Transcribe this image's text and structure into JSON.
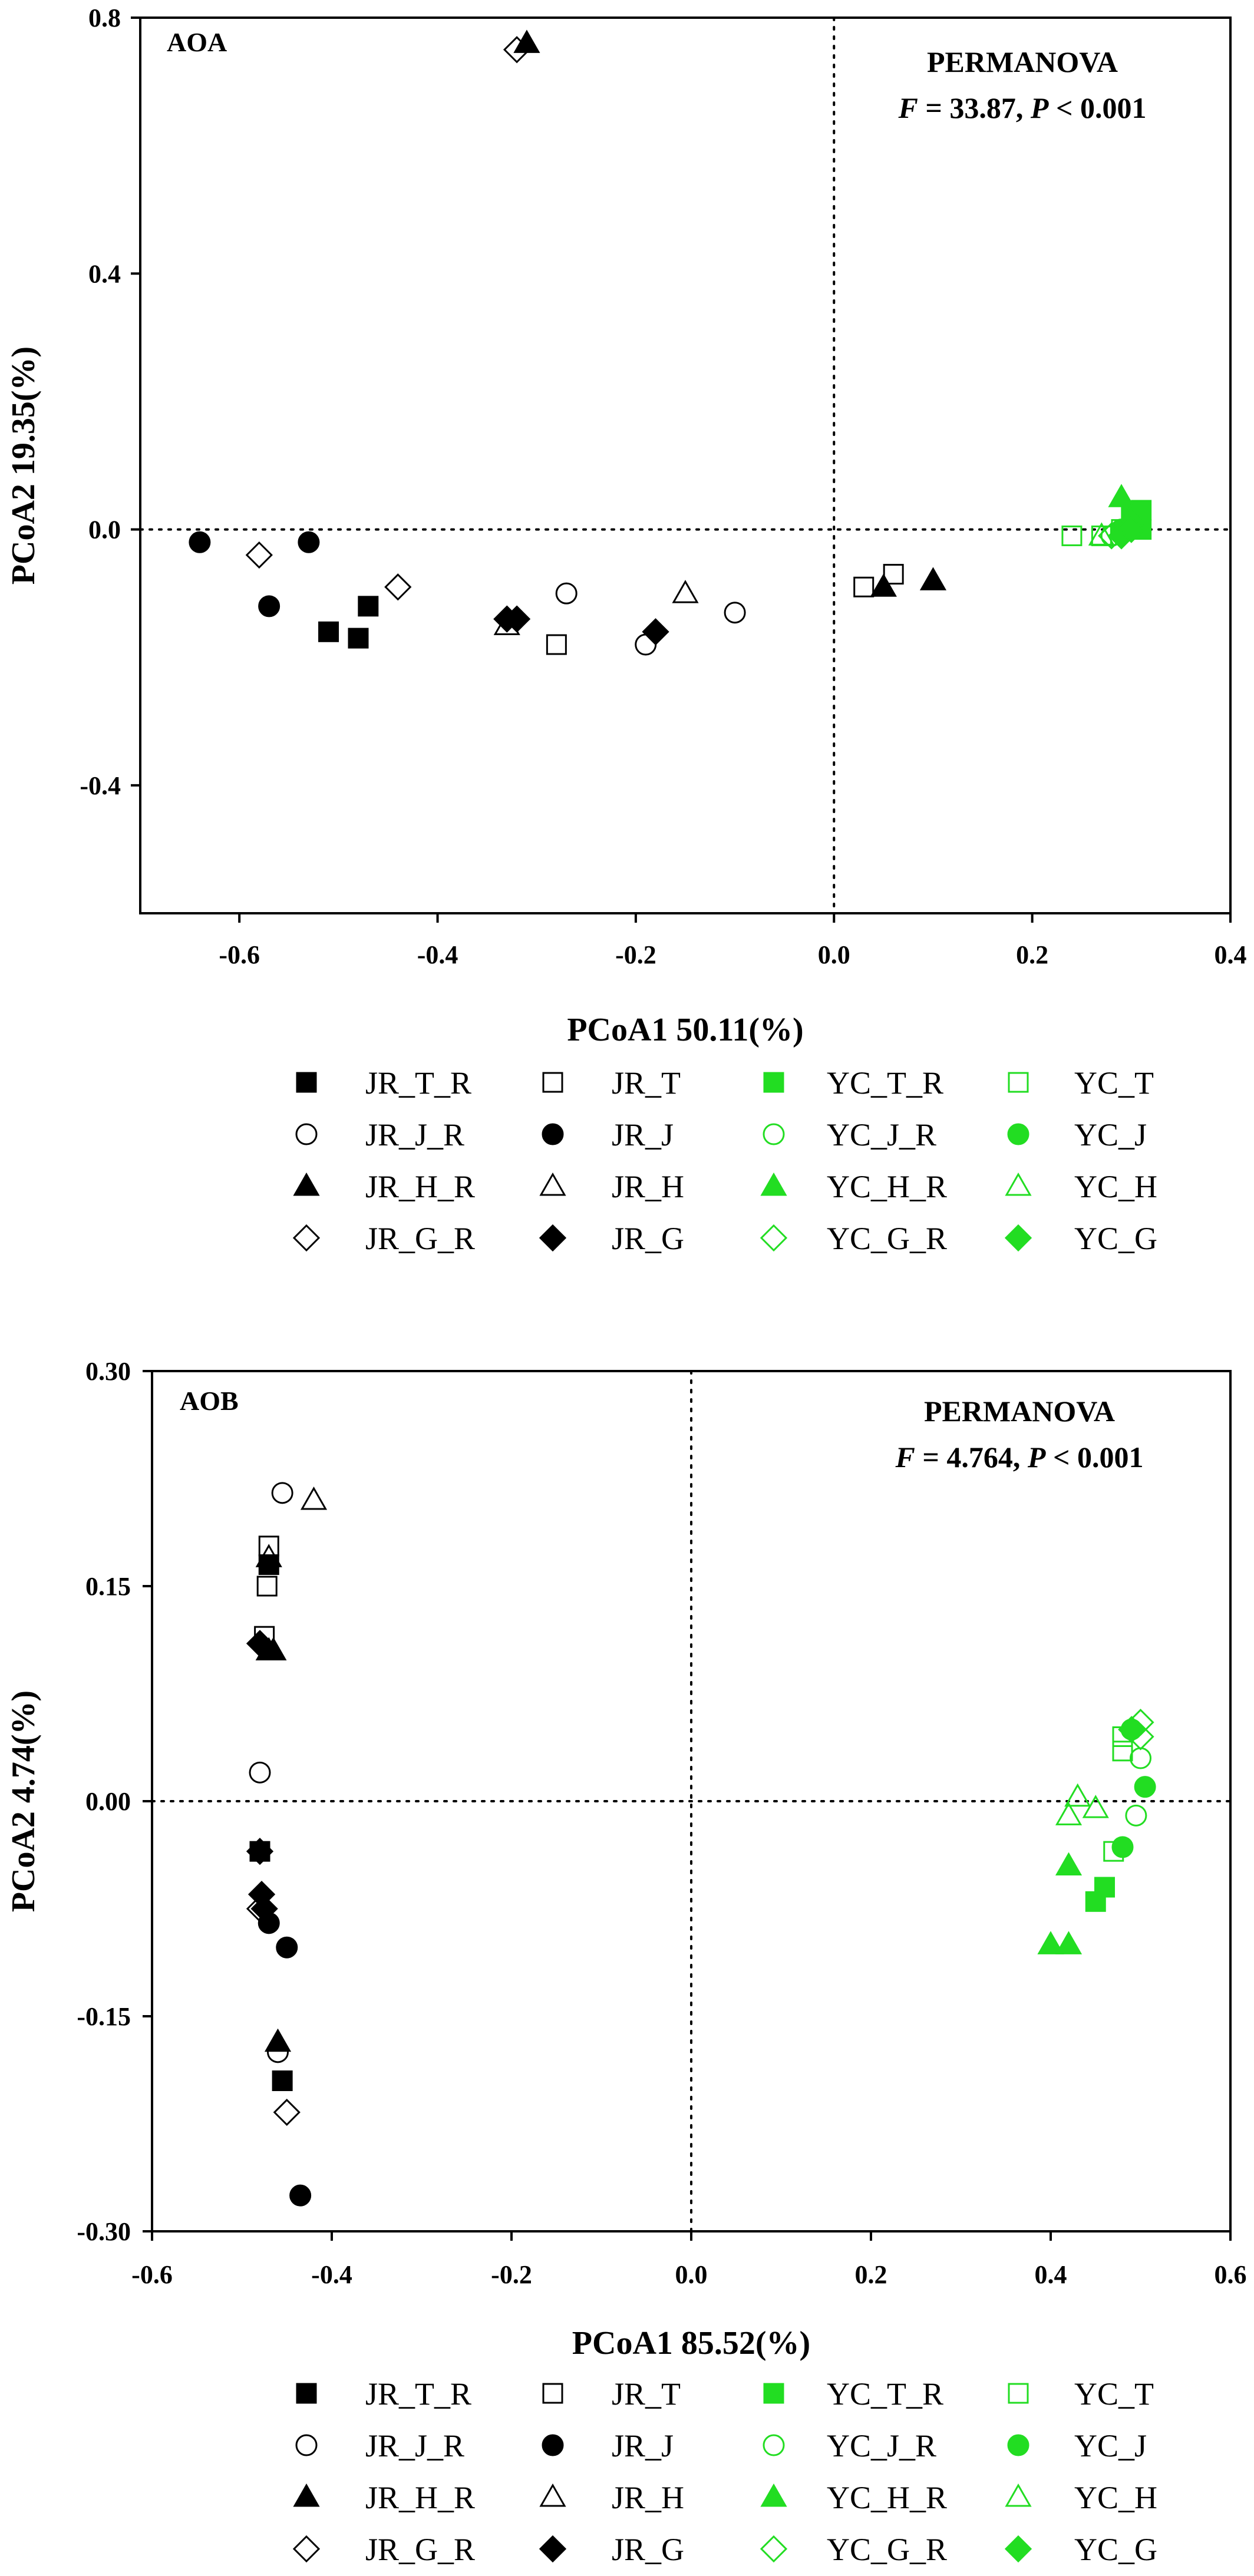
{
  "colors": {
    "black": "#000000",
    "green": "#22dd22"
  },
  "chart_data": [
    {
      "type": "scatter",
      "title": "AOA",
      "annotation": {
        "line1": "PERMANOVA",
        "line2": "F = 33.87, P < 0.001"
      },
      "xlabel": "PCoA1 50.11(%)",
      "ylabel": "PCoA2 19.35(%)",
      "xlim": [
        -0.7,
        0.4
      ],
      "ylim": [
        -0.6,
        0.8
      ],
      "xticks": [
        -0.6,
        -0.4,
        -0.2,
        0.0,
        0.2,
        0.4
      ],
      "xtick_labels": [
        "-0.6",
        "-0.4",
        "-0.2",
        "0.0",
        "0.2",
        "0.4"
      ],
      "yticks": [
        -0.4,
        0.0,
        0.4,
        0.8
      ],
      "ytick_labels": [
        "-0.4",
        "0.0",
        "0.4",
        "0.8"
      ],
      "reference_lines": {
        "x": 0,
        "y": 0,
        "style": "dotted"
      },
      "legend_position": "below",
      "series": [
        {
          "name": "JR_T_R",
          "marker": "square",
          "fill": "filled",
          "color": "black",
          "points": [
            [
              -0.51,
              -0.16
            ],
            [
              -0.48,
              -0.17
            ],
            [
              -0.47,
              -0.12
            ]
          ]
        },
        {
          "name": "JR_T",
          "marker": "square",
          "fill": "open",
          "color": "black",
          "points": [
            [
              -0.28,
              -0.18
            ],
            [
              0.03,
              -0.09
            ],
            [
              0.06,
              -0.07
            ]
          ]
        },
        {
          "name": "YC_T_R",
          "marker": "square",
          "fill": "filled",
          "color": "green",
          "points": [
            [
              0.3,
              0.02
            ],
            [
              0.31,
              0.03
            ],
            [
              0.31,
              0.0
            ]
          ]
        },
        {
          "name": "YC_T",
          "marker": "square",
          "fill": "open",
          "color": "green",
          "points": [
            [
              0.24,
              -0.01
            ],
            [
              0.27,
              -0.01
            ],
            [
              0.29,
              0.0
            ]
          ]
        },
        {
          "name": "JR_J_R",
          "marker": "circle",
          "fill": "open",
          "color": "black",
          "points": [
            [
              -0.27,
              -0.1
            ],
            [
              -0.19,
              -0.18
            ],
            [
              -0.1,
              -0.13
            ]
          ]
        },
        {
          "name": "JR_J",
          "marker": "circle",
          "fill": "filled",
          "color": "black",
          "points": [
            [
              -0.64,
              -0.02
            ],
            [
              -0.57,
              -0.12
            ],
            [
              -0.53,
              -0.02
            ]
          ]
        },
        {
          "name": "YC_J_R",
          "marker": "circle",
          "fill": "open",
          "color": "green",
          "points": [
            [
              0.28,
              -0.01
            ],
            [
              0.3,
              0.0
            ]
          ]
        },
        {
          "name": "YC_J",
          "marker": "circle",
          "fill": "filled",
          "color": "green",
          "points": [
            [
              0.29,
              0.0
            ],
            [
              0.3,
              0.01
            ]
          ]
        },
        {
          "name": "JR_H_R",
          "marker": "triangle",
          "fill": "filled",
          "color": "black",
          "points": [
            [
              -0.31,
              0.76
            ],
            [
              0.05,
              -0.09
            ],
            [
              0.1,
              -0.08
            ]
          ]
        },
        {
          "name": "JR_H",
          "marker": "triangle",
          "fill": "open",
          "color": "black",
          "points": [
            [
              -0.33,
              -0.15
            ],
            [
              -0.15,
              -0.1
            ]
          ]
        },
        {
          "name": "YC_H_R",
          "marker": "triangle",
          "fill": "filled",
          "color": "green",
          "points": [
            [
              0.29,
              0.05
            ],
            [
              0.3,
              0.02
            ]
          ]
        },
        {
          "name": "YC_H",
          "marker": "triangle",
          "fill": "open",
          "color": "green",
          "points": [
            [
              0.27,
              -0.01
            ]
          ]
        },
        {
          "name": "JR_G_R",
          "marker": "diamond",
          "fill": "open",
          "color": "black",
          "points": [
            [
              -0.58,
              -0.04
            ],
            [
              -0.44,
              -0.09
            ],
            [
              -0.32,
              0.75
            ]
          ]
        },
        {
          "name": "JR_G",
          "marker": "diamond",
          "fill": "filled",
          "color": "black",
          "points": [
            [
              -0.33,
              -0.14
            ],
            [
              -0.32,
              -0.14
            ],
            [
              -0.18,
              -0.16
            ]
          ]
        },
        {
          "name": "YC_G_R",
          "marker": "diamond",
          "fill": "open",
          "color": "green",
          "points": [
            [
              0.28,
              -0.01
            ],
            [
              0.3,
              0.01
            ]
          ]
        },
        {
          "name": "YC_G",
          "marker": "diamond",
          "fill": "filled",
          "color": "green",
          "points": [
            [
              0.29,
              -0.01
            ],
            [
              0.3,
              0.0
            ]
          ]
        }
      ]
    },
    {
      "type": "scatter",
      "title": "AOB",
      "annotation": {
        "line1": "PERMANOVA",
        "line2": "F = 4.764, P < 0.001"
      },
      "xlabel": "PCoA1 85.52(%)",
      "ylabel": "PCoA2 4.74(%)",
      "xlim": [
        -0.6,
        0.6
      ],
      "ylim": [
        -0.3,
        0.3
      ],
      "xticks": [
        -0.6,
        -0.4,
        -0.2,
        0.0,
        0.2,
        0.4,
        0.6
      ],
      "xtick_labels": [
        "-0.6",
        "-0.4",
        "-0.2",
        "0.0",
        "0.2",
        "0.4",
        "0.6"
      ],
      "yticks": [
        -0.3,
        -0.15,
        0.0,
        0.15,
        0.3
      ],
      "ytick_labels": [
        "-0.30",
        "-0.15",
        "0.00",
        "0.15",
        "0.30"
      ],
      "reference_lines": {
        "x": 0,
        "y": 0,
        "style": "dotted"
      },
      "legend_position": "below",
      "series": [
        {
          "name": "JR_T_R",
          "marker": "square",
          "fill": "filled",
          "color": "black",
          "points": [
            [
              -0.47,
              0.165
            ],
            [
              -0.48,
              -0.035
            ],
            [
              -0.455,
              -0.195
            ]
          ]
        },
        {
          "name": "JR_T",
          "marker": "square",
          "fill": "open",
          "color": "black",
          "points": [
            [
              -0.47,
              0.178
            ],
            [
              -0.472,
              0.15
            ],
            [
              -0.475,
              0.115
            ]
          ]
        },
        {
          "name": "YC_T_R",
          "marker": "square",
          "fill": "filled",
          "color": "green",
          "points": [
            [
              0.46,
              -0.06
            ],
            [
              0.45,
              -0.07
            ]
          ]
        },
        {
          "name": "YC_T",
          "marker": "square",
          "fill": "open",
          "color": "green",
          "points": [
            [
              0.47,
              -0.035
            ],
            [
              0.48,
              0.035
            ],
            [
              0.48,
              0.045
            ]
          ]
        },
        {
          "name": "JR_J_R",
          "marker": "circle",
          "fill": "open",
          "color": "black",
          "points": [
            [
              -0.455,
              0.215
            ],
            [
              -0.48,
              0.02
            ],
            [
              -0.46,
              -0.175
            ]
          ]
        },
        {
          "name": "JR_J",
          "marker": "circle",
          "fill": "filled",
          "color": "black",
          "points": [
            [
              -0.47,
              -0.085
            ],
            [
              -0.45,
              -0.102
            ],
            [
              -0.435,
              -0.275
            ]
          ]
        },
        {
          "name": "YC_J_R",
          "marker": "circle",
          "fill": "open",
          "color": "green",
          "points": [
            [
              0.5,
              0.03
            ],
            [
              0.495,
              -0.01
            ]
          ]
        },
        {
          "name": "YC_J",
          "marker": "circle",
          "fill": "filled",
          "color": "green",
          "points": [
            [
              0.505,
              0.01
            ],
            [
              0.48,
              -0.032
            ],
            [
              0.49,
              0.05
            ]
          ]
        },
        {
          "name": "JR_H_R",
          "marker": "triangle",
          "fill": "filled",
          "color": "black",
          "points": [
            [
              -0.47,
              0.105
            ],
            [
              -0.465,
              0.105
            ],
            [
              -0.46,
              -0.168
            ]
          ]
        },
        {
          "name": "JR_H",
          "marker": "triangle",
          "fill": "open",
          "color": "black",
          "points": [
            [
              -0.42,
              0.21
            ],
            [
              -0.47,
              0.17
            ]
          ]
        },
        {
          "name": "YC_H_R",
          "marker": "triangle",
          "fill": "filled",
          "color": "green",
          "points": [
            [
              0.42,
              -0.045
            ],
            [
              0.4,
              -0.1
            ],
            [
              0.42,
              -0.1
            ]
          ]
        },
        {
          "name": "YC_H",
          "marker": "triangle",
          "fill": "open",
          "color": "green",
          "points": [
            [
              0.43,
              0.003
            ],
            [
              0.42,
              -0.01
            ],
            [
              0.45,
              -0.005
            ]
          ]
        },
        {
          "name": "JR_G_R",
          "marker": "diamond",
          "fill": "open",
          "color": "black",
          "points": [
            [
              -0.48,
              -0.075
            ],
            [
              -0.45,
              -0.217
            ]
          ]
        },
        {
          "name": "JR_G",
          "marker": "diamond",
          "fill": "filled",
          "color": "black",
          "points": [
            [
              -0.48,
              0.11
            ],
            [
              -0.48,
              -0.035
            ],
            [
              -0.478,
              -0.065
            ],
            [
              -0.475,
              -0.075
            ]
          ]
        },
        {
          "name": "YC_G_R",
          "marker": "diamond",
          "fill": "open",
          "color": "green",
          "points": [
            [
              0.5,
              0.045
            ],
            [
              0.5,
              0.055
            ]
          ]
        },
        {
          "name": "YC_G",
          "marker": "diamond",
          "fill": "filled",
          "color": "green",
          "points": [
            [
              0.49,
              0.05
            ]
          ]
        }
      ]
    }
  ]
}
